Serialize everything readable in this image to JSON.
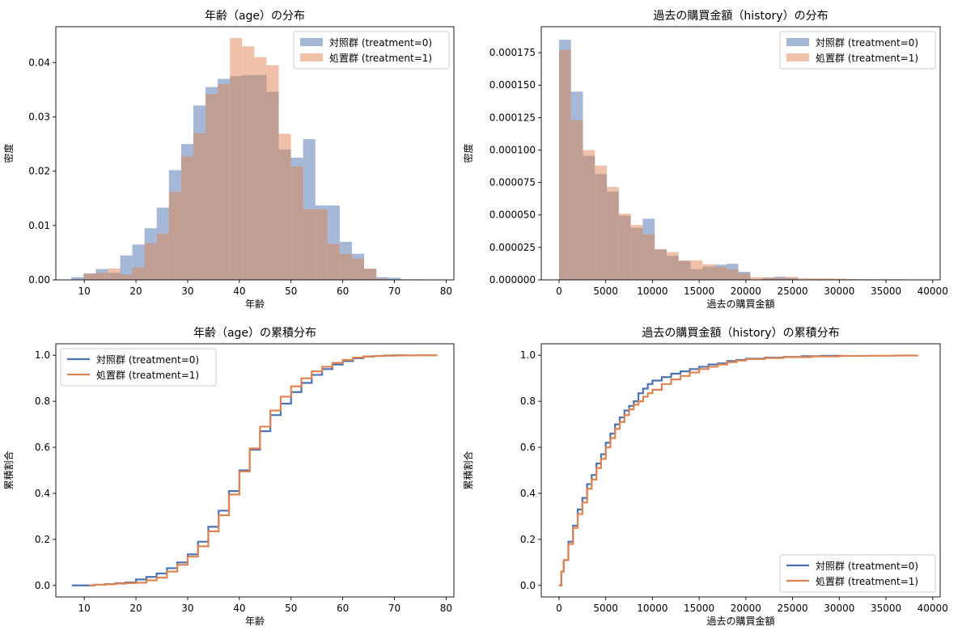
{
  "colors": {
    "control": "#4c72b0",
    "treatment": "#dd8452",
    "hist_alpha": 0.5
  },
  "legend_labels": {
    "control": "対照群 (treatment=0)",
    "treatment": "処置群 (treatment=1)"
  },
  "chart_data": [
    {
      "id": "age_hist",
      "type": "bar",
      "subtype": "histogram-overlay",
      "title": "年齢（age）の分布",
      "xlabel": "年齢",
      "ylabel": "密度",
      "xlim": [
        4.5,
        81.5
      ],
      "ylim": [
        0,
        0.0466
      ],
      "xticks": [
        10,
        20,
        30,
        40,
        50,
        60,
        70,
        80
      ],
      "yticks": [
        0.0,
        0.01,
        0.02,
        0.03,
        0.04
      ],
      "ytick_labels": [
        "0.00",
        "0.01",
        "0.02",
        "0.03",
        "0.04"
      ],
      "legend": "top-right",
      "bin_edges": [
        7.5,
        9.86,
        12.22,
        14.58,
        16.94,
        19.3,
        21.66,
        24.02,
        26.38,
        28.74,
        31.1,
        33.46,
        35.82,
        38.18,
        40.54,
        42.9,
        45.26,
        47.62,
        49.98,
        52.34,
        54.7,
        57.06,
        59.42,
        61.78,
        64.14,
        66.5,
        68.86,
        71.22,
        73.58,
        75.94,
        78.3
      ],
      "series": [
        {
          "name": "対照群 (treatment=0)",
          "key": "control",
          "values": [
            0.0005,
            0.0012,
            0.002,
            0.0013,
            0.0045,
            0.0065,
            0.0095,
            0.0133,
            0.0202,
            0.025,
            0.0321,
            0.0355,
            0.037,
            0.0375,
            0.0377,
            0.0377,
            0.0346,
            0.024,
            0.0225,
            0.0259,
            0.0137,
            0.0137,
            0.007,
            0.0048,
            0.002,
            0.0005,
            0.0004,
            0.0001,
            0.0,
            0.0
          ]
        },
        {
          "name": "処置群 (treatment=1)",
          "key": "treatment",
          "values": [
            0.0,
            0.0011,
            0.0013,
            0.0021,
            0.001,
            0.0023,
            0.0067,
            0.0085,
            0.0162,
            0.0227,
            0.027,
            0.0342,
            0.036,
            0.0445,
            0.043,
            0.041,
            0.0395,
            0.0269,
            0.0209,
            0.013,
            0.013,
            0.0066,
            0.0048,
            0.0039,
            0.0021,
            0.0002,
            0.0,
            0.0,
            0.0001,
            0.0
          ]
        }
      ]
    },
    {
      "id": "history_hist",
      "type": "bar",
      "subtype": "histogram-overlay",
      "title": "過去の購買金額（history）の分布",
      "xlabel": "過去の購買金額",
      "ylabel": "密度",
      "xlim": [
        -1900,
        40800
      ],
      "ylim": [
        0,
        0.000195
      ],
      "xticks": [
        0,
        5000,
        10000,
        15000,
        20000,
        25000,
        30000,
        35000,
        40000
      ],
      "yticks": [
        0,
        2.5e-05,
        5e-05,
        7.5e-05,
        0.0001,
        0.000125,
        0.00015,
        0.000175
      ],
      "ytick_labels": [
        "0.000000",
        "0.000025",
        "0.000050",
        "0.000075",
        "0.000100",
        "0.000125",
        "0.000150",
        "0.000175"
      ],
      "legend": "top-right",
      "bin_edges": [
        0,
        1280,
        2560,
        3840,
        5120,
        6400,
        7680,
        8960,
        10240,
        11520,
        12800,
        14080,
        15360,
        16640,
        17920,
        19200,
        20480,
        21760,
        23040,
        24320,
        25600,
        26880,
        28160,
        29440,
        30720,
        32000,
        33280,
        34560,
        35840,
        37120,
        38400
      ],
      "series": [
        {
          "name": "対照群 (treatment=0)",
          "key": "control",
          "values": [
            0.000185,
            0.000145,
            9.55e-05,
            8.15e-05,
            6.81e-05,
            4.95e-05,
            4.01e-05,
            4.71e-05,
            2.34e-05,
            1.85e-05,
            1.46e-05,
            8.3e-06,
            1.02e-05,
            1.17e-05,
            1.24e-05,
            6.2e-06,
            1e-07,
            1.6e-06,
            2.4e-06,
            1.6e-06,
            0.0,
            0.0,
            2e-07,
            0.0,
            0.0,
            0.0,
            0.0,
            0.0,
            0.0,
            0.0
          ]
        },
        {
          "name": "処置群 (treatment=1)",
          "key": "treatment",
          "values": [
            0.000177,
            0.000123,
            0.0001,
            8.8e-05,
            7.16e-05,
            5.1e-05,
            4.23e-05,
            3.5e-05,
            2.36e-05,
            2.14e-05,
            1.5e-05,
            1.5e-05,
            1.2e-05,
            1e-05,
            8e-06,
            5e-06,
            2.2e-06,
            2e-06,
            1.8e-06,
            2.2e-06,
            1.4e-06,
            1.2e-06,
            1.2e-06,
            1e-06,
            6e-07,
            5e-07,
            4e-07,
            4e-07,
            4e-07,
            0.0
          ]
        }
      ]
    },
    {
      "id": "age_cdf",
      "type": "line",
      "subtype": "ecdf",
      "title": "年齢（age）の累積分布",
      "xlabel": "年齢",
      "ylabel": "累積割合",
      "xlim": [
        4.5,
        81.5
      ],
      "ylim": [
        -0.05,
        1.05
      ],
      "xticks": [
        10,
        20,
        30,
        40,
        50,
        60,
        70,
        80
      ],
      "yticks": [
        0.0,
        0.2,
        0.4,
        0.6,
        0.8,
        1.0
      ],
      "ytick_labels": [
        "0.0",
        "0.2",
        "0.4",
        "0.6",
        "0.8",
        "1.0"
      ],
      "legend": "top-left",
      "series": [
        {
          "name": "対照群 (treatment=0)",
          "key": "control",
          "x": [
            7.6,
            10,
            12,
            14,
            16,
            18,
            20,
            22,
            24,
            26,
            28,
            30,
            32,
            34,
            36,
            38,
            40,
            42,
            44,
            46,
            48,
            50,
            52,
            54,
            56,
            58,
            60,
            62,
            64,
            66,
            68,
            70,
            72
          ],
          "y": [
            0.0,
            0.0,
            0.003,
            0.006,
            0.01,
            0.013,
            0.026,
            0.037,
            0.052,
            0.075,
            0.1,
            0.135,
            0.19,
            0.255,
            0.325,
            0.41,
            0.5,
            0.59,
            0.67,
            0.74,
            0.79,
            0.84,
            0.88,
            0.915,
            0.94,
            0.96,
            0.975,
            0.987,
            0.994,
            0.997,
            0.999,
            1.0,
            1.0
          ]
        },
        {
          "name": "処置群 (treatment=1)",
          "key": "treatment",
          "x": [
            11,
            12,
            14,
            16,
            18,
            20,
            22,
            24,
            26,
            28,
            30,
            32,
            34,
            36,
            38,
            40,
            42,
            44,
            46,
            48,
            50,
            52,
            54,
            56,
            58,
            60,
            62,
            64,
            66,
            68,
            70,
            72,
            74,
            76,
            78.3
          ],
          "y": [
            0.0,
            0.003,
            0.005,
            0.008,
            0.01,
            0.012,
            0.022,
            0.034,
            0.06,
            0.09,
            0.125,
            0.17,
            0.235,
            0.305,
            0.395,
            0.495,
            0.595,
            0.69,
            0.76,
            0.82,
            0.865,
            0.9,
            0.93,
            0.95,
            0.967,
            0.98,
            0.99,
            0.995,
            0.997,
            0.998,
            0.999,
            0.9995,
            1.0,
            1.0,
            1.0
          ]
        }
      ]
    },
    {
      "id": "history_cdf",
      "type": "line",
      "subtype": "ecdf",
      "title": "過去の購買金額（history）の累積分布",
      "xlabel": "過去の購買金額",
      "ylabel": "累積割合",
      "xlim": [
        -1900,
        40800
      ],
      "ylim": [
        -0.05,
        1.05
      ],
      "xticks": [
        0,
        5000,
        10000,
        15000,
        20000,
        25000,
        30000,
        35000,
        40000
      ],
      "yticks": [
        0.0,
        0.2,
        0.4,
        0.6,
        0.8,
        1.0
      ],
      "ytick_labels": [
        "0.0",
        "0.2",
        "0.4",
        "0.6",
        "0.8",
        "1.0"
      ],
      "legend": "bottom-right",
      "series": [
        {
          "name": "対照群 (treatment=0)",
          "key": "control",
          "x": [
            0,
            250,
            500,
            1000,
            1500,
            2000,
            2500,
            3000,
            3500,
            4000,
            4500,
            5000,
            5500,
            6000,
            6500,
            7000,
            7500,
            8000,
            8500,
            9000,
            9500,
            10000,
            11000,
            12000,
            13000,
            14000,
            15000,
            16000,
            17000,
            18000,
            19000,
            20000,
            22000,
            24000,
            26000,
            28000,
            30500
          ],
          "y": [
            0.0,
            0.06,
            0.11,
            0.19,
            0.26,
            0.33,
            0.38,
            0.44,
            0.48,
            0.53,
            0.57,
            0.62,
            0.66,
            0.7,
            0.73,
            0.76,
            0.78,
            0.8,
            0.835,
            0.855,
            0.875,
            0.89,
            0.905,
            0.92,
            0.93,
            0.94,
            0.95,
            0.96,
            0.965,
            0.975,
            0.98,
            0.985,
            0.99,
            0.993,
            0.996,
            0.998,
            1.0
          ]
        },
        {
          "name": "処置群 (treatment=1)",
          "key": "treatment",
          "x": [
            0,
            250,
            500,
            1000,
            1500,
            2000,
            2500,
            3000,
            3500,
            4000,
            4500,
            5000,
            5500,
            6000,
            6500,
            7000,
            7500,
            8000,
            8500,
            9000,
            9500,
            10000,
            11000,
            12000,
            13000,
            14000,
            15000,
            16000,
            17000,
            18000,
            19000,
            20000,
            22000,
            24000,
            27000,
            30000,
            33000,
            36000,
            38400
          ],
          "y": [
            0.0,
            0.06,
            0.11,
            0.18,
            0.25,
            0.31,
            0.36,
            0.42,
            0.46,
            0.51,
            0.55,
            0.6,
            0.64,
            0.68,
            0.71,
            0.74,
            0.765,
            0.785,
            0.8,
            0.82,
            0.835,
            0.85,
            0.875,
            0.895,
            0.91,
            0.925,
            0.94,
            0.95,
            0.96,
            0.97,
            0.977,
            0.983,
            0.988,
            0.992,
            0.995,
            0.997,
            0.998,
            0.999,
            1.0
          ]
        }
      ]
    }
  ]
}
